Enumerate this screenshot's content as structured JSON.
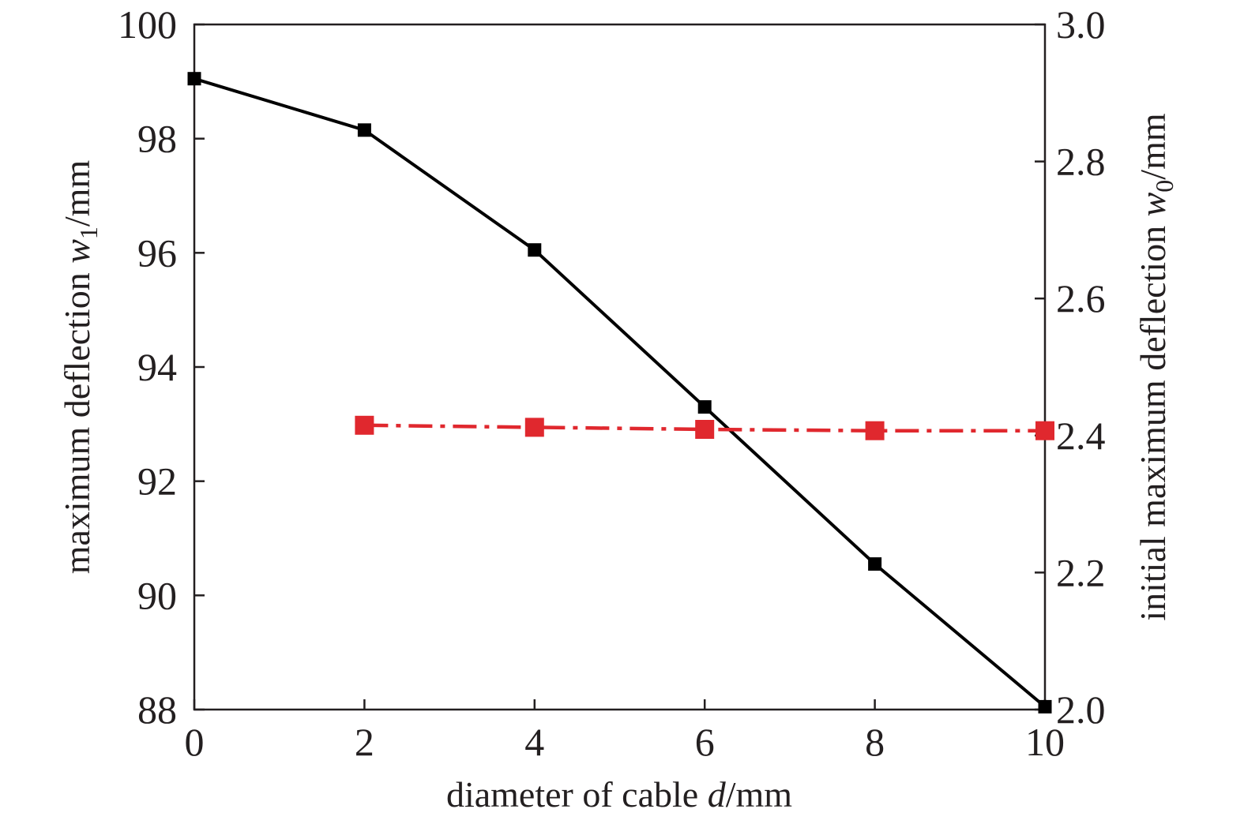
{
  "chart_data": {
    "type": "line",
    "xlabel": {
      "prefix": "diameter of cable ",
      "var": "d",
      "unit": "/mm"
    },
    "ylabel_left": {
      "prefix": "maximum deflection ",
      "var": "w",
      "sub": "1",
      "unit": "/mm"
    },
    "ylabel_right": {
      "prefix": "initial maximum deflection ",
      "var": "w",
      "sub": "0",
      "unit": "/mm"
    },
    "xlim": [
      0,
      10
    ],
    "ylim_left": [
      88,
      100
    ],
    "ylim_right": [
      2.0,
      3.0
    ],
    "xticks": [
      "0",
      "2",
      "4",
      "6",
      "8",
      "10"
    ],
    "yticks_left": [
      "88",
      "90",
      "92",
      "94",
      "96",
      "98",
      "100"
    ],
    "yticks_right": [
      "2.0",
      "2.2",
      "2.4",
      "2.6",
      "2.8",
      "3.0"
    ],
    "grid": false,
    "series": [
      {
        "axis": "left",
        "color": "#000000",
        "line_style": "solid",
        "marker": "square",
        "x": [
          0,
          2,
          4,
          6,
          8,
          10
        ],
        "values": [
          99.05,
          98.15,
          96.05,
          93.3,
          90.55,
          88.05
        ]
      },
      {
        "axis": "right",
        "color": "#e0282e",
        "line_style": "dash-dot",
        "marker": "square",
        "x": [
          2,
          4,
          6,
          8,
          10
        ],
        "values": [
          2.415,
          2.412,
          2.409,
          2.407,
          2.407
        ]
      }
    ]
  }
}
